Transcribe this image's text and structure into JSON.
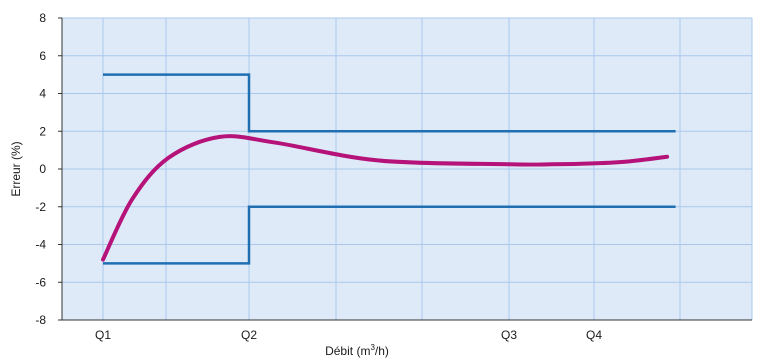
{
  "chart_data": {
    "type": "line",
    "title": "",
    "xlabel": "Débit (m³/h)",
    "xlabel_parts": {
      "before": "Débit (m",
      "sup": "3",
      "after": "/h)"
    },
    "ylabel": "Erreur (%)",
    "ylim": [
      -8,
      8
    ],
    "y_ticks": [
      8,
      6,
      4,
      2,
      0,
      -2,
      -4,
      -6,
      -8
    ],
    "x_tick_labels": [
      "Q1",
      "Q2",
      "Q3",
      "Q4"
    ],
    "grid": true,
    "colors": {
      "plot_background": "#deeaf8",
      "grid": "#a9c8ec",
      "limits": "#1f6fb2",
      "curve": "#b5127a",
      "axis": "#333333"
    },
    "series": [
      {
        "role": "upper-limit",
        "points": [
          [
            0,
            5
          ],
          [
            1,
            5
          ],
          [
            1,
            2
          ],
          [
            3.96,
            2
          ]
        ]
      },
      {
        "role": "lower-limit",
        "points": [
          [
            0,
            -5
          ],
          [
            1,
            -5
          ],
          [
            1,
            -2
          ],
          [
            3.96,
            -2
          ]
        ]
      },
      {
        "role": "error-curve",
        "points": [
          [
            0,
            -4.8
          ],
          [
            0.2,
            -1.6
          ],
          [
            0.45,
            0.6
          ],
          [
            0.8,
            1.7
          ],
          [
            1.1,
            1.4
          ],
          [
            1.5,
            0.45
          ],
          [
            2.0,
            0.25
          ],
          [
            2.5,
            0.25
          ],
          [
            3.0,
            0.3
          ],
          [
            3.4,
            0.4
          ],
          [
            3.86,
            0.65
          ]
        ]
      }
    ]
  }
}
